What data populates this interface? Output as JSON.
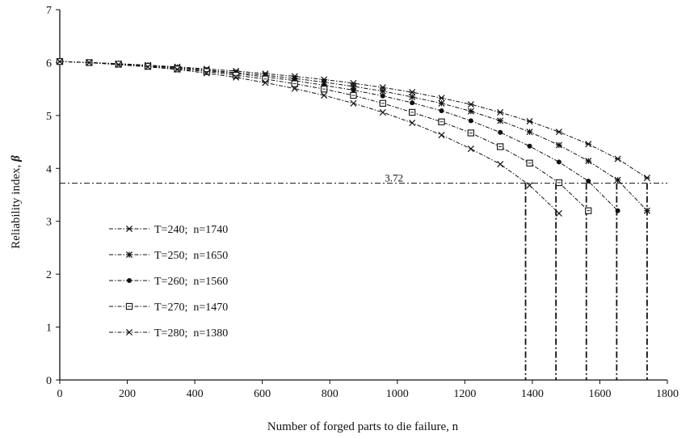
{
  "chart_data": {
    "type": "line",
    "xlabel": "Number of forged parts to die failure, n",
    "ylabel": "Reliability index,",
    "ylabel_symbol": "β",
    "xlim": [
      0,
      1800
    ],
    "ylim": [
      0,
      7
    ],
    "xticks": [
      0,
      200,
      400,
      600,
      800,
      1000,
      1200,
      1400,
      1600,
      1800
    ],
    "yticks": [
      0,
      1,
      2,
      3,
      4,
      5,
      6,
      7
    ],
    "grid": false,
    "legend_position": "left",
    "threshold": {
      "y": 3.72,
      "label": "3.72"
    },
    "series": [
      {
        "name": "T=240;  n=1740",
        "marker": "asterisk",
        "failure_n": 1740,
        "x": [
          0,
          87,
          174,
          261,
          348,
          435,
          522,
          609,
          696,
          783,
          870,
          957,
          1044,
          1131,
          1218,
          1305,
          1392,
          1479,
          1566,
          1653,
          1740
        ],
        "y": [
          6.02,
          6.0,
          5.98,
          5.95,
          5.92,
          5.88,
          5.84,
          5.79,
          5.74,
          5.68,
          5.61,
          5.53,
          5.44,
          5.33,
          5.21,
          5.06,
          4.89,
          4.69,
          4.46,
          4.18,
          3.82
        ]
      },
      {
        "name": "T=250;  n=1650",
        "marker": "star",
        "failure_n": 1650,
        "x": [
          0,
          87,
          174,
          261,
          348,
          435,
          522,
          609,
          696,
          783,
          870,
          957,
          1044,
          1131,
          1218,
          1305,
          1392,
          1479,
          1566,
          1653,
          1740
        ],
        "y": [
          6.02,
          6.0,
          5.98,
          5.95,
          5.91,
          5.86,
          5.81,
          5.76,
          5.7,
          5.63,
          5.55,
          5.46,
          5.35,
          5.23,
          5.08,
          4.9,
          4.69,
          4.44,
          4.14,
          3.78,
          3.2
        ]
      },
      {
        "name": "T=260;  n=1560",
        "marker": "dot",
        "failure_n": 1560,
        "x": [
          0,
          87,
          174,
          261,
          348,
          435,
          522,
          609,
          696,
          783,
          870,
          957,
          1044,
          1131,
          1218,
          1305,
          1392,
          1479,
          1566,
          1653
        ],
        "y": [
          6.02,
          6.0,
          5.97,
          5.94,
          5.9,
          5.85,
          5.79,
          5.73,
          5.66,
          5.57,
          5.48,
          5.37,
          5.24,
          5.09,
          4.9,
          4.68,
          4.42,
          4.12,
          3.76,
          3.2
        ]
      },
      {
        "name": "T=270;  n=1470",
        "marker": "square",
        "failure_n": 1470,
        "x": [
          0,
          87,
          174,
          261,
          348,
          435,
          522,
          609,
          696,
          783,
          870,
          957,
          1044,
          1131,
          1218,
          1305,
          1392,
          1479,
          1566
        ],
        "y": [
          6.02,
          6.0,
          5.97,
          5.93,
          5.88,
          5.83,
          5.76,
          5.69,
          5.6,
          5.5,
          5.38,
          5.23,
          5.06,
          4.88,
          4.67,
          4.41,
          4.1,
          3.73,
          3.2
        ]
      },
      {
        "name": "T=280;  n=1380",
        "marker": "cross",
        "failure_n": 1380,
        "x": [
          0,
          87,
          174,
          261,
          348,
          435,
          522,
          609,
          696,
          783,
          870,
          957,
          1044,
          1131,
          1218,
          1305,
          1392,
          1479
        ],
        "y": [
          6.02,
          6.0,
          5.96,
          5.92,
          5.87,
          5.8,
          5.72,
          5.62,
          5.51,
          5.38,
          5.23,
          5.06,
          4.86,
          4.63,
          4.37,
          4.08,
          3.68,
          3.15
        ]
      }
    ]
  },
  "colors": {
    "ink": "#111111",
    "background": "#ffffff"
  }
}
